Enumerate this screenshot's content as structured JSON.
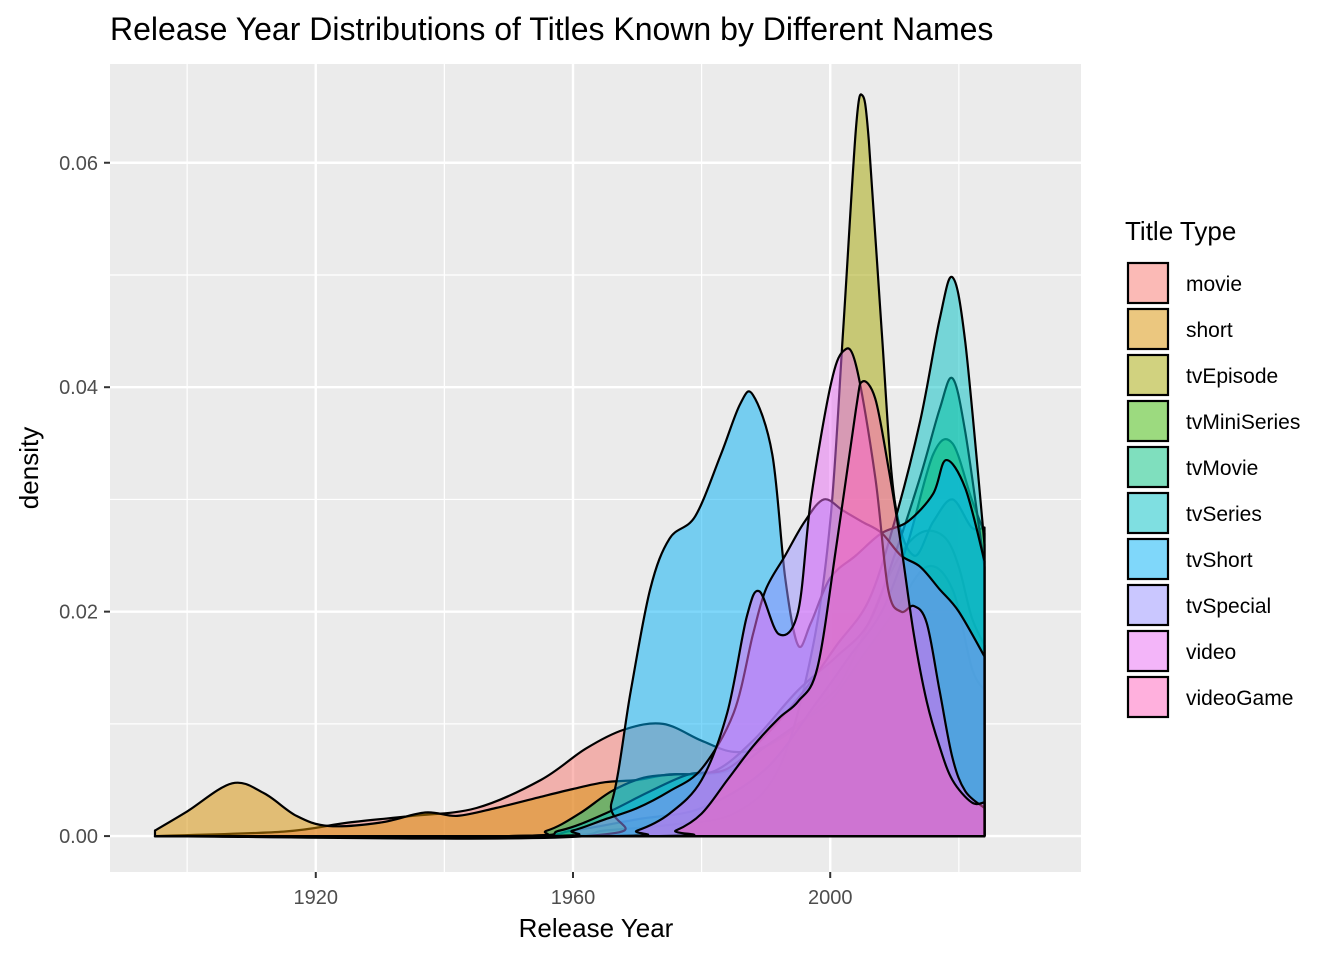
{
  "chart_data": {
    "type": "area",
    "subtype": "density",
    "title": "Release Year Distributions of Titles Known by Different Names",
    "xlabel": "Release Year",
    "ylabel": "density",
    "xlim": [
      1888,
      2039
    ],
    "ylim": [
      -0.0032,
      0.0688
    ],
    "x_ticks": [
      1920,
      1960,
      2000
    ],
    "x_tick_labels": [
      "1920",
      "1960",
      "2000"
    ],
    "y_ticks": [
      0,
      0.02,
      0.04,
      0.06
    ],
    "y_tick_labels": [
      "0.00",
      "0.02",
      "0.04",
      "0.06"
    ],
    "grid": true,
    "legend": {
      "title": "Title Type",
      "position": "right",
      "entries": [
        "movie",
        "short",
        "tvEpisode",
        "tvMiniSeries",
        "tvMovie",
        "tvSeries",
        "tvShort",
        "tvSpecial",
        "video",
        "videoGame"
      ]
    },
    "series": [
      {
        "name": "movie",
        "color": "#F8766D",
        "points": [
          [
            1895,
            0
          ],
          [
            1915,
            0.0004
          ],
          [
            1925,
            0.0012
          ],
          [
            1935,
            0.0018
          ],
          [
            1945,
            0.0025
          ],
          [
            1955,
            0.005
          ],
          [
            1962,
            0.0078
          ],
          [
            1968,
            0.0095
          ],
          [
            1974,
            0.01
          ],
          [
            1980,
            0.0085
          ],
          [
            1985,
            0.0075
          ],
          [
            1990,
            0.008
          ],
          [
            1995,
            0.0098
          ],
          [
            1999,
            0.012
          ],
          [
            2002,
            0.014
          ],
          [
            2006,
            0.019
          ],
          [
            2009,
            0.023
          ],
          [
            2012,
            0.026
          ],
          [
            2015,
            0.0272
          ],
          [
            2018,
            0.0265
          ],
          [
            2020,
            0.024
          ],
          [
            2022,
            0.0195
          ],
          [
            2024,
            0.017
          ]
        ]
      },
      {
        "name": "short",
        "color": "#D89000",
        "points": [
          [
            1895,
            0.0005
          ],
          [
            1900,
            0.0022
          ],
          [
            1907,
            0.0047
          ],
          [
            1912,
            0.0038
          ],
          [
            1917,
            0.0018
          ],
          [
            1922,
            0.0009
          ],
          [
            1930,
            0.0012
          ],
          [
            1937,
            0.0021
          ],
          [
            1942,
            0.0018
          ],
          [
            1948,
            0.0025
          ],
          [
            1955,
            0.0035
          ],
          [
            1960,
            0.0042
          ],
          [
            1965,
            0.0048
          ],
          [
            1970,
            0.005
          ],
          [
            1975,
            0.0055
          ],
          [
            1980,
            0.0055
          ],
          [
            1985,
            0.006
          ],
          [
            1990,
            0.008
          ],
          [
            1995,
            0.01
          ],
          [
            2000,
            0.012
          ],
          [
            2005,
            0.016
          ],
          [
            2010,
            0.02
          ],
          [
            2015,
            0.024
          ],
          [
            2019,
            0.022
          ],
          [
            2022,
            0.015
          ],
          [
            2024,
            0.013
          ]
        ]
      },
      {
        "name": "tvEpisode",
        "color": "#A3A500",
        "points": [
          [
            1895,
            0
          ],
          [
            1955,
            0
          ],
          [
            1965,
            0.0005
          ],
          [
            1975,
            0.001
          ],
          [
            1985,
            0.002
          ],
          [
            1992,
            0.006
          ],
          [
            1997,
            0.016
          ],
          [
            2000,
            0.028
          ],
          [
            2002,
            0.045
          ],
          [
            2004,
            0.063
          ],
          [
            2005,
            0.066
          ],
          [
            2006,
            0.062
          ],
          [
            2008,
            0.045
          ],
          [
            2010,
            0.03
          ],
          [
            2013,
            0.025
          ],
          [
            2016,
            0.028
          ],
          [
            2019,
            0.03
          ],
          [
            2022,
            0.0275
          ],
          [
            2024,
            0.0275
          ]
        ]
      },
      {
        "name": "tvMiniSeries",
        "color": "#39B600",
        "points": [
          [
            1895,
            0
          ],
          [
            1950,
            0
          ],
          [
            1960,
            0.0005
          ],
          [
            1970,
            0.0015
          ],
          [
            1980,
            0.0025
          ],
          [
            1990,
            0.006
          ],
          [
            1998,
            0.012
          ],
          [
            2003,
            0.016
          ],
          [
            2008,
            0.02
          ],
          [
            2012,
            0.026
          ],
          [
            2016,
            0.034
          ],
          [
            2019,
            0.035
          ],
          [
            2022,
            0.03
          ],
          [
            2024,
            0.027
          ]
        ]
      },
      {
        "name": "tvMovie",
        "color": "#00BF7D",
        "points": [
          [
            1895,
            0
          ],
          [
            1950,
            0
          ],
          [
            1956,
            0.0005
          ],
          [
            1961,
            0.002
          ],
          [
            1966,
            0.004
          ],
          [
            1971,
            0.0052
          ],
          [
            1976,
            0.0055
          ],
          [
            1982,
            0.0058
          ],
          [
            1988,
            0.0085
          ],
          [
            1995,
            0.013
          ],
          [
            2001,
            0.016
          ],
          [
            2006,
            0.019
          ],
          [
            2010,
            0.025
          ],
          [
            2014,
            0.032
          ],
          [
            2017,
            0.038
          ],
          [
            2019,
            0.0408
          ],
          [
            2021,
            0.036
          ],
          [
            2024,
            0.024
          ]
        ]
      },
      {
        "name": "tvSeries",
        "color": "#00BFC4",
        "points": [
          [
            1895,
            0
          ],
          [
            1950,
            0
          ],
          [
            1958,
            0.0005
          ],
          [
            1965,
            0.002
          ],
          [
            1972,
            0.004
          ],
          [
            1978,
            0.0055
          ],
          [
            1984,
            0.006
          ],
          [
            1990,
            0.009
          ],
          [
            1996,
            0.013
          ],
          [
            2001,
            0.017
          ],
          [
            2006,
            0.021
          ],
          [
            2010,
            0.028
          ],
          [
            2014,
            0.037
          ],
          [
            2017,
            0.046
          ],
          [
            2019,
            0.0498
          ],
          [
            2021,
            0.044
          ],
          [
            2024,
            0.026
          ]
        ]
      },
      {
        "name": "tvShort",
        "color": "#00B0F6",
        "points": [
          [
            1895,
            0
          ],
          [
            1962,
            0
          ],
          [
            1966,
            0.003
          ],
          [
            1969,
            0.013
          ],
          [
            1972,
            0.022
          ],
          [
            1975,
            0.0265
          ],
          [
            1979,
            0.0285
          ],
          [
            1983,
            0.034
          ],
          [
            1986,
            0.0385
          ],
          [
            1988,
            0.0393
          ],
          [
            1991,
            0.034
          ],
          [
            1993,
            0.023
          ],
          [
            1995,
            0.017
          ],
          [
            1997,
            0.019
          ],
          [
            2000,
            0.023
          ],
          [
            2004,
            0.025
          ],
          [
            2008,
            0.027
          ],
          [
            2012,
            0.028
          ],
          [
            2016,
            0.0305
          ],
          [
            2018,
            0.0335
          ],
          [
            2021,
            0.031
          ],
          [
            2024,
            0.0245
          ]
        ]
      },
      {
        "name": "tvSpecial",
        "color": "#9590FF",
        "points": [
          [
            1895,
            0
          ],
          [
            1955,
            0
          ],
          [
            1960,
            0.0005
          ],
          [
            1965,
            0.0015
          ],
          [
            1970,
            0.0025
          ],
          [
            1975,
            0.004
          ],
          [
            1980,
            0.006
          ],
          [
            1985,
            0.011
          ],
          [
            1988,
            0.018
          ],
          [
            1990,
            0.022
          ],
          [
            1993,
            0.025
          ],
          [
            1996,
            0.028
          ],
          [
            1999,
            0.03
          ],
          [
            2002,
            0.029
          ],
          [
            2005,
            0.028
          ],
          [
            2008,
            0.027
          ],
          [
            2011,
            0.025
          ],
          [
            2014,
            0.024
          ],
          [
            2017,
            0.022
          ],
          [
            2020,
            0.02
          ],
          [
            2024,
            0.016
          ]
        ]
      },
      {
        "name": "video",
        "color": "#E76BF3",
        "points": [
          [
            1895,
            0
          ],
          [
            1965,
            0
          ],
          [
            1970,
            0.0005
          ],
          [
            1975,
            0.002
          ],
          [
            1980,
            0.005
          ],
          [
            1984,
            0.011
          ],
          [
            1987,
            0.0195
          ],
          [
            1989,
            0.0218
          ],
          [
            1992,
            0.018
          ],
          [
            1995,
            0.02
          ],
          [
            1997,
            0.03
          ],
          [
            2000,
            0.04
          ],
          [
            2002,
            0.0432
          ],
          [
            2004,
            0.042
          ],
          [
            2007,
            0.032
          ],
          [
            2009,
            0.022
          ],
          [
            2011,
            0.02
          ],
          [
            2013,
            0.0205
          ],
          [
            2015,
            0.019
          ],
          [
            2017,
            0.013
          ],
          [
            2019,
            0.007
          ],
          [
            2021,
            0.004
          ],
          [
            2024,
            0.0025
          ]
        ]
      },
      {
        "name": "videoGame",
        "color": "#FF62BC",
        "points": [
          [
            1895,
            0
          ],
          [
            1972,
            0
          ],
          [
            1976,
            0.0005
          ],
          [
            1980,
            0.002
          ],
          [
            1984,
            0.005
          ],
          [
            1988,
            0.008
          ],
          [
            1992,
            0.0105
          ],
          [
            1995,
            0.012
          ],
          [
            1998,
            0.015
          ],
          [
            2001,
            0.026
          ],
          [
            2004,
            0.038
          ],
          [
            2005,
            0.0405
          ],
          [
            2007,
            0.039
          ],
          [
            2009,
            0.033
          ],
          [
            2011,
            0.026
          ],
          [
            2013,
            0.018
          ],
          [
            2015,
            0.012
          ],
          [
            2017,
            0.008
          ],
          [
            2019,
            0.005
          ],
          [
            2022,
            0.003
          ],
          [
            2024,
            0.003
          ]
        ]
      }
    ]
  }
}
